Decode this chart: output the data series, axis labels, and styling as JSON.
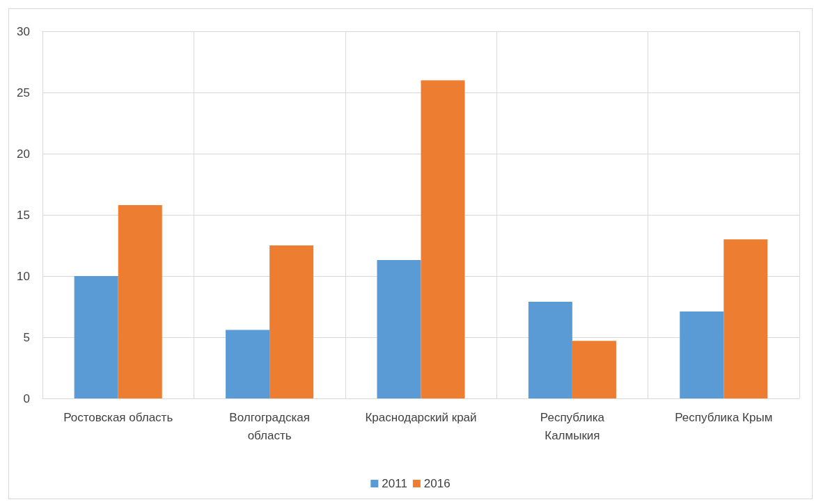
{
  "chart_data": {
    "type": "bar",
    "categories": [
      "Ростовская область",
      "Волгоградская область",
      "Краснодарский край",
      "Республика Калмыкия",
      "Республика Крым"
    ],
    "series": [
      {
        "name": "2011",
        "color": "#5b9bd5",
        "values": [
          10,
          5.6,
          11.3,
          7.9,
          7.1
        ]
      },
      {
        "name": "2016",
        "color": "#ed7d31",
        "values": [
          15.8,
          12.5,
          26,
          4.7,
          13
        ]
      }
    ],
    "ylim": [
      0,
      30
    ],
    "yticks": [
      0,
      5,
      10,
      15,
      20,
      25,
      30
    ],
    "grid": true,
    "legend": "bottom"
  }
}
